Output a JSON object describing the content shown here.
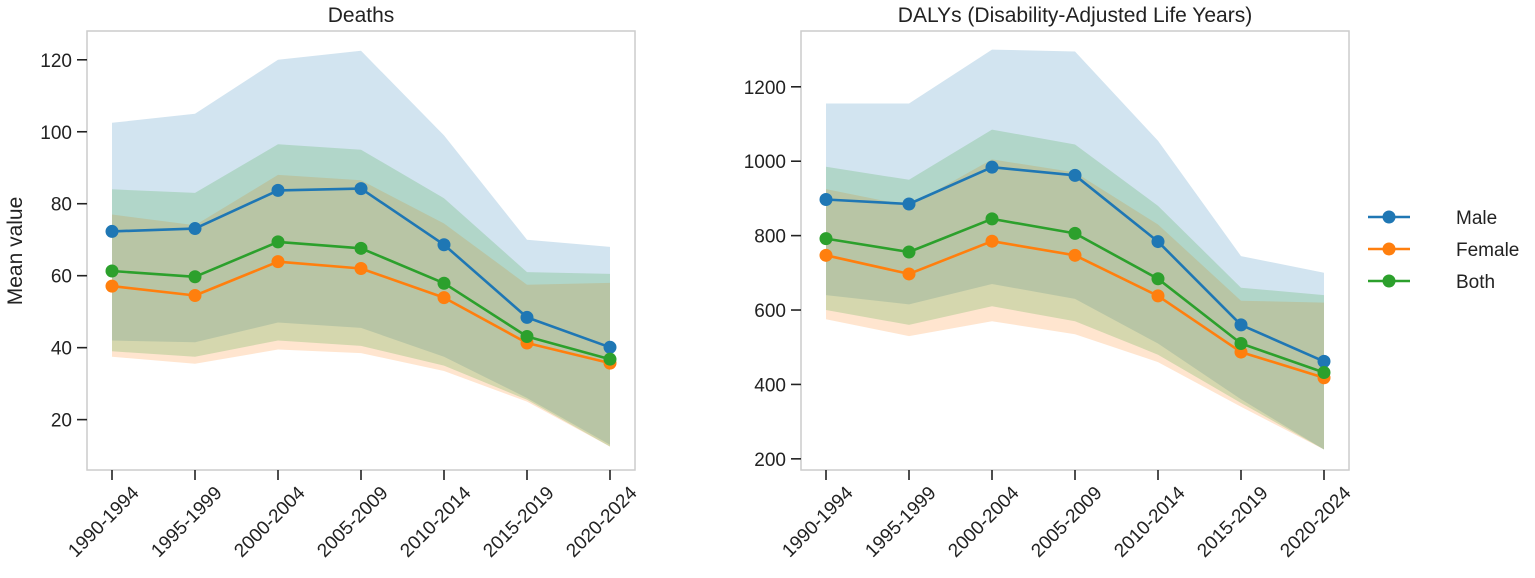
{
  "figure": {
    "ylabel": "Mean value",
    "legend": {
      "placement": "right",
      "entries": [
        {
          "name": "Male",
          "color": "#1f77b4"
        },
        {
          "name": "Female",
          "color": "#ff7f0e"
        },
        {
          "name": "Both",
          "color": "#2ca02c"
        }
      ]
    }
  },
  "chart_data": [
    {
      "type": "line",
      "title": "Deaths",
      "xlabel": "",
      "ylabel": "Mean value",
      "categories": [
        "1990-1994",
        "1995-1999",
        "2000-2004",
        "2005-2009",
        "2010-2014",
        "2015-2019",
        "2020-2024"
      ],
      "ylim": [
        6,
        128
      ],
      "yticks": [
        20,
        40,
        60,
        80,
        100,
        120
      ],
      "series": [
        {
          "name": "Male",
          "color": "#1f77b4",
          "values": [
            72.3,
            73.1,
            83.7,
            84.2,
            68.6,
            48.4,
            40.1
          ],
          "lower": [
            42,
            41.5,
            47,
            45.5,
            37.5,
            26,
            13
          ],
          "upper": [
            102.5,
            105,
            120,
            122.5,
            99,
            70,
            68
          ]
        },
        {
          "name": "Female",
          "color": "#ff7f0e",
          "values": [
            57.1,
            54.5,
            63.9,
            62,
            53.9,
            41.3,
            35.7
          ],
          "lower": [
            37.5,
            35.5,
            39.5,
            38.5,
            33.5,
            25,
            12.5
          ],
          "upper": [
            77,
            74,
            88,
            86.5,
            74.5,
            57.5,
            58
          ]
        },
        {
          "name": "Both",
          "color": "#2ca02c",
          "values": [
            61.3,
            59.7,
            69.4,
            67.6,
            57.9,
            43.1,
            36.8
          ],
          "lower": [
            39,
            37.5,
            42,
            40.5,
            35,
            25.5,
            12.5
          ],
          "upper": [
            84,
            83,
            96.5,
            95,
            81.5,
            61,
            60.5
          ]
        }
      ]
    },
    {
      "type": "line",
      "title": "DALYs (Disability-Adjusted Life Years)",
      "xlabel": "",
      "ylabel": "",
      "categories": [
        "1990-1994",
        "1995-1999",
        "2000-2004",
        "2005-2009",
        "2010-2014",
        "2015-2019",
        "2020-2024"
      ],
      "ylim": [
        170,
        1350
      ],
      "yticks": [
        200,
        400,
        600,
        800,
        1000,
        1200
      ],
      "series": [
        {
          "name": "Male",
          "color": "#1f77b4",
          "values": [
            897,
            885,
            984,
            962,
            784,
            560,
            462
          ],
          "lower": [
            640,
            615,
            670,
            630,
            510,
            360,
            225
          ],
          "upper": [
            1155,
            1155,
            1300,
            1295,
            1055,
            745,
            700
          ]
        },
        {
          "name": "Female",
          "color": "#ff7f0e",
          "values": [
            747,
            697,
            785,
            747,
            638,
            487,
            418
          ],
          "lower": [
            575,
            530,
            570,
            535,
            460,
            340,
            225
          ],
          "upper": [
            925,
            880,
            1005,
            970,
            830,
            625,
            620
          ]
        },
        {
          "name": "Both",
          "color": "#2ca02c",
          "values": [
            792,
            756,
            845,
            806,
            684,
            510,
            432
          ],
          "lower": [
            600,
            560,
            610,
            570,
            480,
            350,
            225
          ],
          "upper": [
            985,
            950,
            1085,
            1045,
            880,
            660,
            640
          ]
        }
      ]
    }
  ]
}
